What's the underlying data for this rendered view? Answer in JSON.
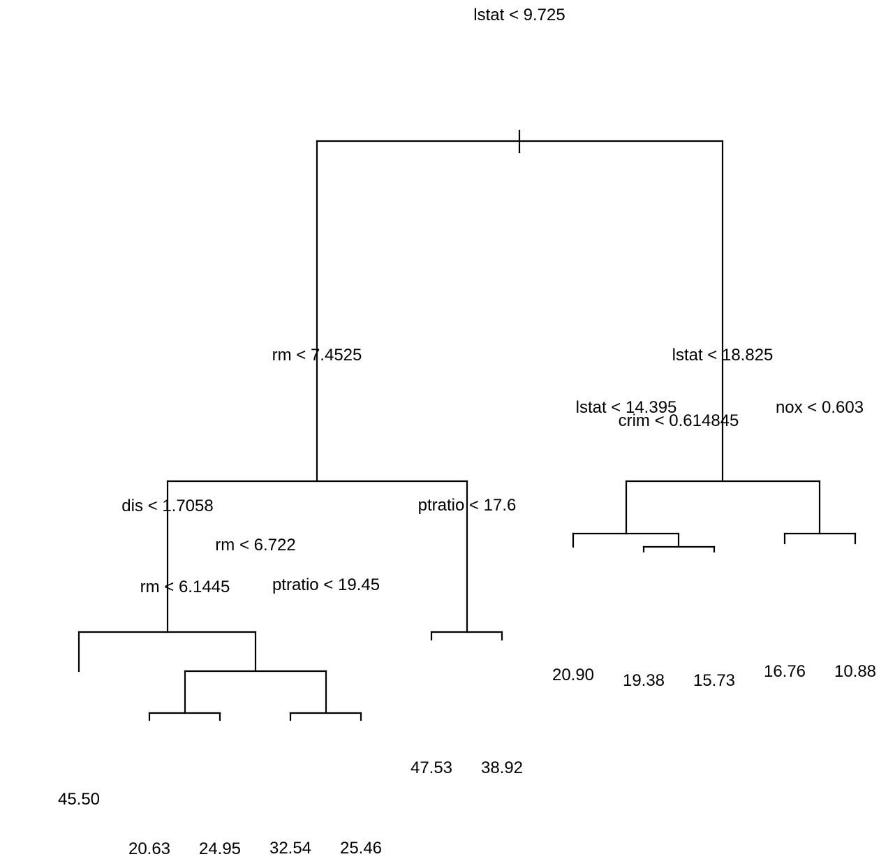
{
  "tree": {
    "type": "regression-tree",
    "line_color": "#000000",
    "root": {
      "split": "lstat < 9.725",
      "left": {
        "split": "rm < 7.4525",
        "left": {
          "split": "dis < 1.7058",
          "left": {
            "value": "45.50"
          },
          "right": {
            "split": "rm < 6.722",
            "left": {
              "split": "rm < 6.1445",
              "left": {
                "value": "20.63"
              },
              "right": {
                "value": "24.95"
              }
            },
            "right": {
              "split": "ptratio < 19.45",
              "left": {
                "value": "32.54"
              },
              "right": {
                "value": "25.46"
              }
            }
          }
        },
        "right": {
          "split": "ptratio < 17.6",
          "left": {
            "value": "47.53"
          },
          "right": {
            "value": "38.92"
          }
        }
      },
      "right": {
        "split": "lstat < 18.825",
        "left": {
          "split": "lstat < 14.395",
          "left": {
            "value": "20.90"
          },
          "right": {
            "split": "crim < 0.614845",
            "left": {
              "value": "19.38"
            },
            "right": {
              "value": "15.73"
            }
          }
        },
        "right": {
          "split": "nox < 0.603",
          "left": {
            "value": "16.76"
          },
          "right": {
            "value": "10.88"
          }
        }
      }
    }
  }
}
